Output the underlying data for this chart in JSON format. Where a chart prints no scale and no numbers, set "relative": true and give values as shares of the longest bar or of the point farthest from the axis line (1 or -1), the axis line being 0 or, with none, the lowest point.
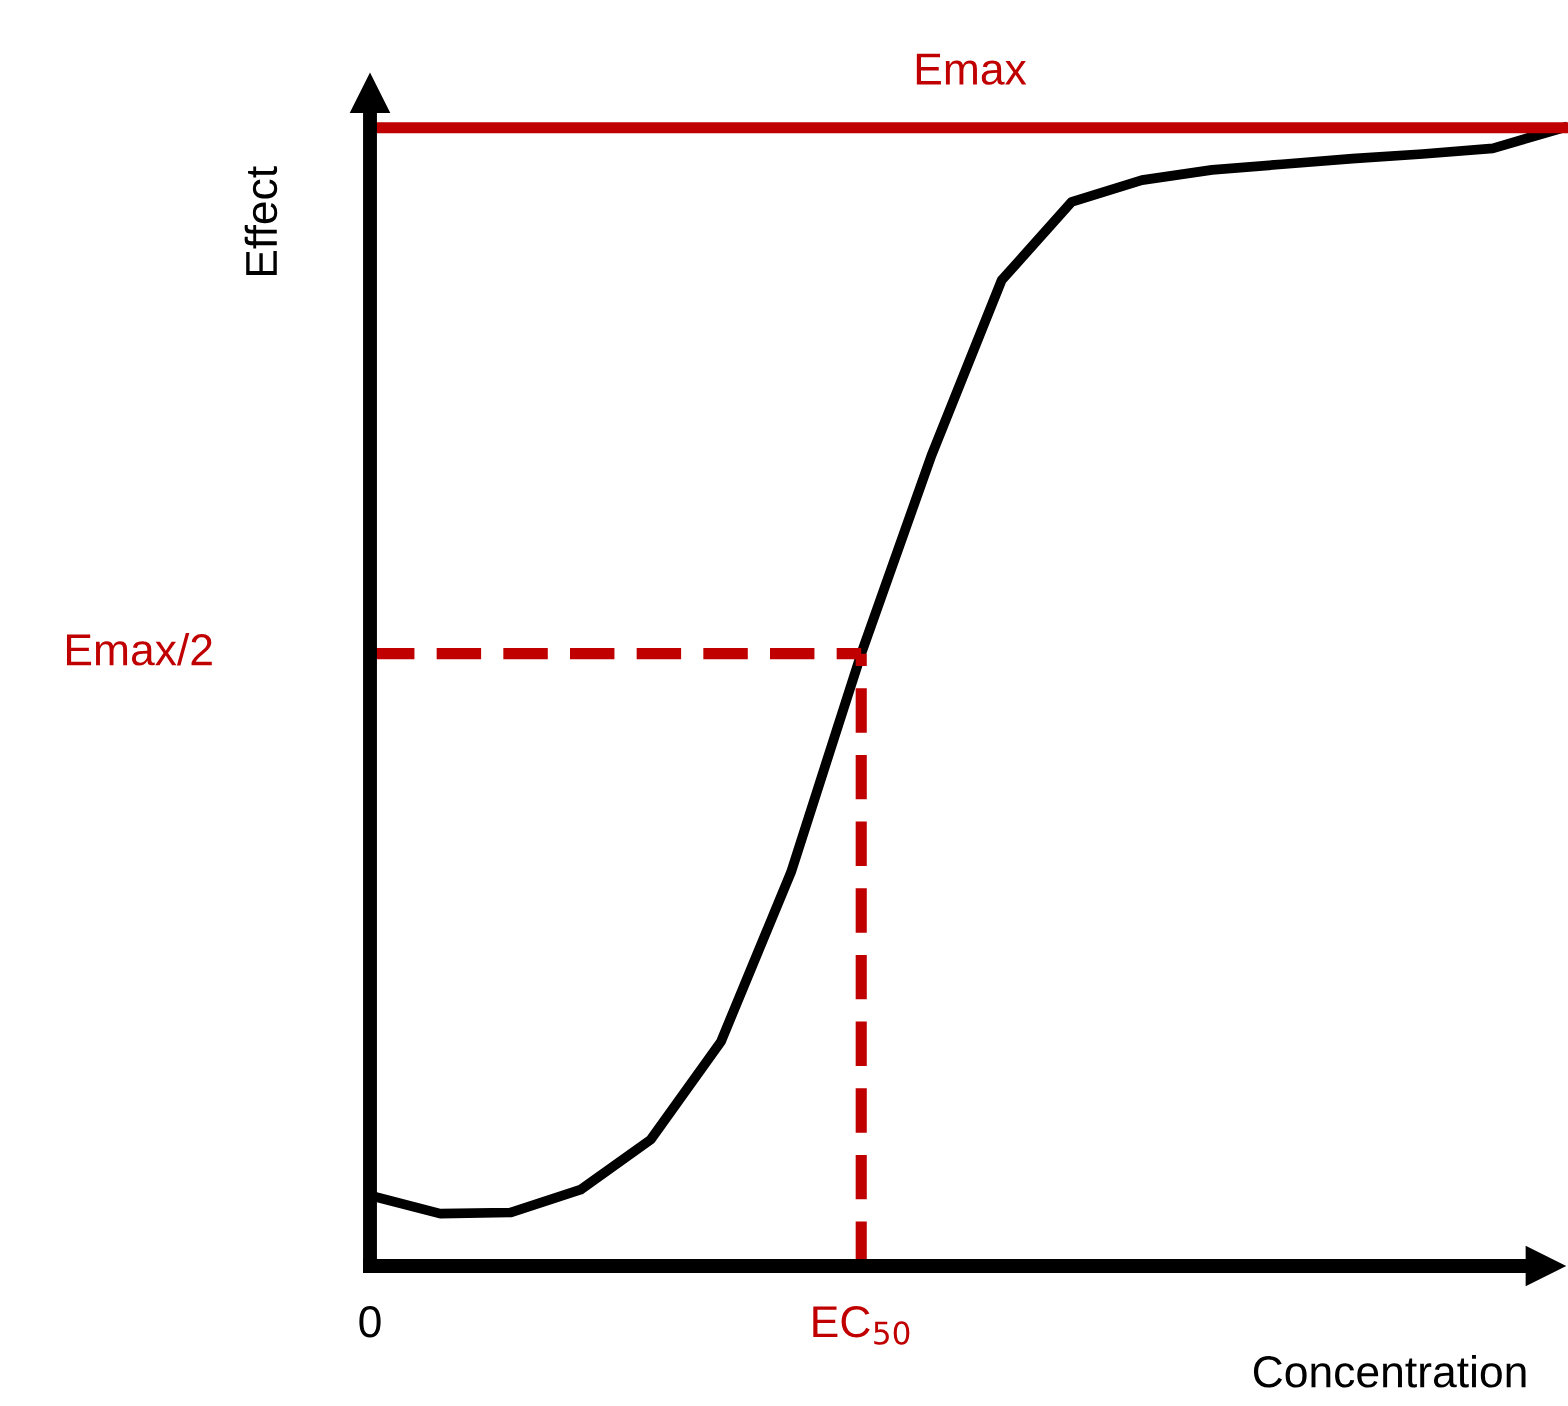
{
  "chart_data": {
    "type": "line",
    "relative": true,
    "categories": [
      "0",
      null,
      null,
      null,
      null,
      null,
      null,
      "EC$_{50}$",
      null,
      null,
      null,
      null,
      null,
      null,
      null,
      null,
      null,
      null
    ],
    "xlabel": "Concentration",
    "ylabel": "Effect",
    "series": [
      {
        "color": "#000000",
        "values": [
          0.062,
          0.046,
          0.047,
          0.067,
          0.111,
          0.197,
          0.346,
          0.538,
          0.712,
          0.866,
          0.935,
          0.954,
          0.963,
          0.968,
          0.973,
          0.977,
          0.982,
          1
        ]
      }
    ],
    "ref_lines": [
      {
        "axis": "y",
        "value": 1,
        "label": "Emax",
        "color": "#c00000",
        "line_style": "solid"
      },
      {
        "axis": "y",
        "value": 0.538,
        "label": "Emax/2",
        "color": "#c00000",
        "line_style": "dashed"
      },
      {
        "axis": "x",
        "value": "EC$_{50}$",
        "label": null,
        "color": "#c00000",
        "line_style": "dashed"
      }
    ],
    "marker": "none",
    "line_style": "solid",
    "grid": false,
    "legend": false
  }
}
